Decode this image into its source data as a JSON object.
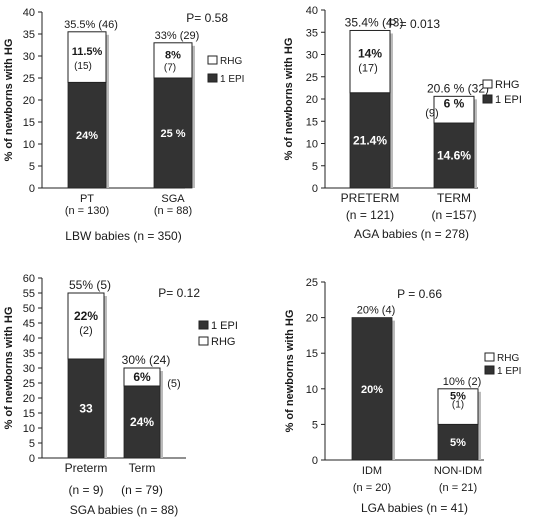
{
  "colors": {
    "rhg": "#ffffff",
    "epi": "#333333",
    "axis": "#222222"
  },
  "chart_data": [
    {
      "type": "bar",
      "stacked": true,
      "ylabel": "% of newborns with HG",
      "ylim": [
        0,
        40
      ],
      "yticks": [
        "0",
        "5",
        "10",
        "15",
        "20",
        "25",
        "30",
        "35",
        "40"
      ],
      "p_value": "P= 0.58",
      "legend": [
        "RHG",
        "1 EPI"
      ],
      "legend_position": "right",
      "group_label": "LBW babies (n = 350)",
      "categories": [
        "PT",
        "SGA"
      ],
      "n_labels": [
        "(n = 130)",
        "(n = 88)"
      ],
      "total_labels": [
        "35.5% (46)",
        "33% (29)"
      ],
      "series": [
        {
          "name": "1 EPI",
          "values": [
            24,
            25
          ],
          "labels": [
            "24%",
            "25 %"
          ]
        },
        {
          "name": "RHG",
          "values": [
            11.5,
            8
          ],
          "labels": [
            "11.5%",
            "8%"
          ],
          "count_labels": [
            "(15)",
            "(7)"
          ]
        }
      ]
    },
    {
      "type": "bar",
      "stacked": true,
      "ylabel": "% of newborns with HG",
      "ylim": [
        0,
        40
      ],
      "yticks": [
        "0",
        "5",
        "10",
        "15",
        "20",
        "25",
        "30",
        "35",
        "40"
      ],
      "p_value": "P = 0.013",
      "legend": [
        "RHG",
        "1 EPI"
      ],
      "legend_position": "right",
      "group_label": "AGA babies (n = 278)",
      "categories": [
        "PRETERM",
        "TERM"
      ],
      "n_labels": [
        "(n = 121)",
        "(n =157)"
      ],
      "total_labels": [
        "35.4% (43)",
        "20.6 % (32)"
      ],
      "series": [
        {
          "name": "1 EPI",
          "values": [
            21.4,
            14.6
          ],
          "labels": [
            "21.4%",
            "14.6%"
          ]
        },
        {
          "name": "RHG",
          "values": [
            14,
            6
          ],
          "labels": [
            "14%",
            "6 %"
          ],
          "count_labels": [
            "(17)",
            "(9)"
          ]
        }
      ]
    },
    {
      "type": "bar",
      "stacked": true,
      "ylabel": "% of newborns with HG",
      "ylim": [
        0,
        60
      ],
      "yticks": [
        "0",
        "5",
        "10",
        "15",
        "20",
        "25",
        "30",
        "35",
        "40",
        "45",
        "50",
        "55",
        "60"
      ],
      "p_value": "P= 0.12",
      "legend": [
        "1 EPI",
        "RHG"
      ],
      "legend_position": "right",
      "group_label": "SGA babies (n = 88)",
      "categories": [
        "Preterm",
        "Term"
      ],
      "n_labels": [
        "(n = 9)",
        "(n = 79)"
      ],
      "total_labels": [
        "55% (5)",
        "30% (24)"
      ],
      "series": [
        {
          "name": "1 EPI",
          "values": [
            33,
            24
          ],
          "labels": [
            "33",
            "24%"
          ]
        },
        {
          "name": "RHG",
          "values": [
            22,
            6
          ],
          "labels": [
            "22%",
            "6%"
          ],
          "count_labels": [
            "(2)",
            "(5)"
          ]
        }
      ]
    },
    {
      "type": "bar",
      "stacked": true,
      "ylabel": "% of newborns with HG",
      "ylim": [
        0,
        25
      ],
      "yticks": [
        "0",
        "5",
        "10",
        "15",
        "20",
        "25"
      ],
      "p_value": "P = 0.66",
      "legend": [
        "RHG",
        "1 EPI"
      ],
      "legend_position": "right",
      "group_label": "LGA babies (n = 41)",
      "categories": [
        "IDM",
        "NON-IDM"
      ],
      "n_labels": [
        "(n = 20)",
        "(n = 21)"
      ],
      "total_labels": [
        "20% (4)",
        "10% (2)"
      ],
      "series": [
        {
          "name": "1 EPI",
          "values": [
            20,
            5
          ],
          "labels": [
            "20%",
            "5%"
          ]
        },
        {
          "name": "RHG",
          "values": [
            0,
            5
          ],
          "labels": [
            "",
            "5%"
          ],
          "count_labels": [
            "",
            "(1)"
          ]
        }
      ]
    }
  ]
}
